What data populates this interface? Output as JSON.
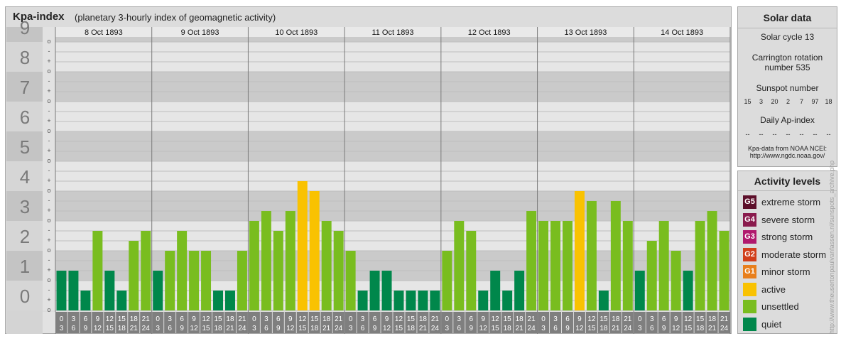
{
  "title": "Kpa-index",
  "subtitle": "(planetary 3-hourly index of geomagnetic activity)",
  "chart_data": {
    "type": "bar",
    "title": "Kpa-index",
    "subtitle": "(planetary 3-hourly index of geomagnetic activity)",
    "y_ticks": [
      "0",
      "1",
      "2",
      "3",
      "4",
      "5",
      "6",
      "7",
      "8",
      "9"
    ],
    "minor_ticks": [
      "o",
      "+",
      "-"
    ],
    "ylim": [
      0,
      9.33
    ],
    "days": [
      "8 Oct 1893",
      "9 Oct 1893",
      "10 Oct 1893",
      "11 Oct 1893",
      "12 Oct 1893",
      "13 Oct 1893",
      "14 Oct 1893"
    ],
    "hour_labels_top": [
      "0",
      "3",
      "6",
      "9",
      "12",
      "15",
      "18",
      "21"
    ],
    "hour_labels_bottom": [
      "3",
      "6",
      "9",
      "12",
      "15",
      "18",
      "21",
      "24"
    ],
    "values": [
      [
        1.333,
        1.333,
        0.667,
        2.667,
        1.333,
        0.667,
        2.333,
        2.667
      ],
      [
        1.333,
        2.0,
        2.667,
        2.0,
        2.0,
        0.667,
        0.667,
        2.0
      ],
      [
        3.0,
        3.333,
        2.667,
        3.333,
        4.333,
        4.0,
        3.0,
        2.667
      ],
      [
        2.0,
        0.667,
        1.333,
        1.333,
        0.667,
        0.667,
        0.667,
        0.667
      ],
      [
        2.0,
        3.0,
        2.667,
        0.667,
        1.333,
        0.667,
        1.333,
        3.333
      ],
      [
        3.0,
        3.0,
        3.0,
        4.0,
        3.667,
        0.667,
        3.667,
        3.0
      ],
      [
        1.333,
        2.333,
        3.0,
        2.0,
        1.333,
        3.0,
        3.333,
        2.667
      ]
    ],
    "level_colors": {
      "quiet": "#00874b",
      "unsettled": "#79bd1f",
      "active": "#f9c201"
    }
  },
  "solar": {
    "title": "Solar data",
    "cycle": "Solar cycle 13",
    "carrington_line1": "Carrington rotation",
    "carrington_line2": "number 535",
    "sunspot_title": "Sunspot number",
    "sunspot_values": [
      "15",
      "3",
      "20",
      "2",
      "7",
      "97",
      "18"
    ],
    "ap_title": "Daily Ap-index",
    "ap_values": [
      "--",
      "--",
      "--",
      "--",
      "--",
      "--",
      "--"
    ],
    "source_line1": "Kpa-data from NOAA NCEI:",
    "source_line2": "http://www.ngdc.noaa.gov/"
  },
  "levels": {
    "title": "Activity levels",
    "items": [
      {
        "badge": "G5",
        "label": "extreme storm",
        "color": "#5c0f2a"
      },
      {
        "badge": "G4",
        "label": "severe storm",
        "color": "#8a1b4d"
      },
      {
        "badge": "G3",
        "label": "strong storm",
        "color": "#b0186d"
      },
      {
        "badge": "G2",
        "label": "moderate storm",
        "color": "#d13f1b"
      },
      {
        "badge": "G1",
        "label": "minor storm",
        "color": "#e87f1c"
      },
      {
        "badge": "",
        "label": "active",
        "color": "#f9c201"
      },
      {
        "badge": "",
        "label": "unsettled",
        "color": "#79bd1f"
      },
      {
        "badge": "",
        "label": "quiet",
        "color": "#00874b"
      }
    ]
  },
  "watermark": "http://www.theusertonpaulvanfassen.nl/sunspots_archive.php"
}
